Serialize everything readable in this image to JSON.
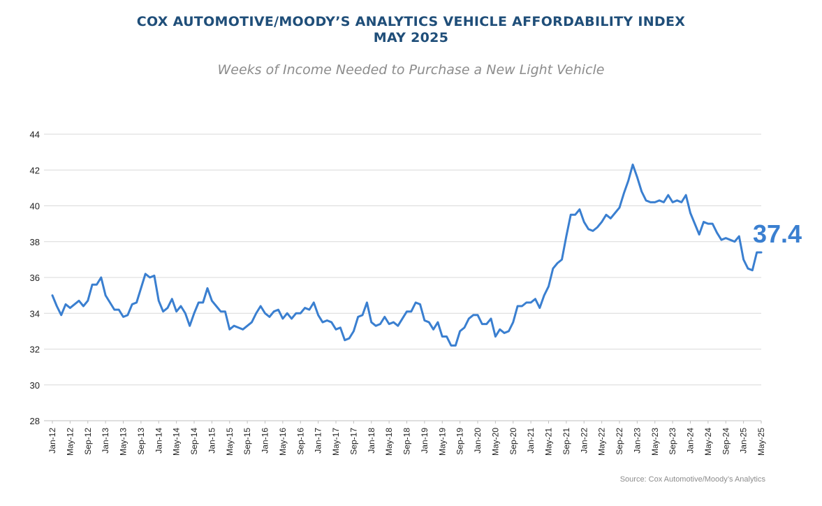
{
  "chart_data": {
    "type": "line",
    "title": "COX AUTOMOTIVE/MOODY’S ANALYTICS VEHICLE AFFORDABILITY INDEX",
    "title_line2": "MAY 2025",
    "subtitle": "Weeks of Income Needed to Purchase a New Light Vehicle",
    "source": "Source: Cox Automotive/Moody’s Analytics",
    "callout": "37.4",
    "xlabel": "",
    "ylabel": "",
    "ylim": [
      28,
      44
    ],
    "yticks": [
      28,
      30,
      32,
      34,
      36,
      38,
      40,
      42,
      44
    ],
    "grid": true,
    "line_color": "#3a7fd0",
    "grid_color": "#d9d9d9",
    "x_tick_labels": [
      "Jan-12",
      "May-12",
      "Sep-12",
      "Jan-13",
      "May-13",
      "Sep-13",
      "Jan-14",
      "May-14",
      "Sep-14",
      "Jan-15",
      "May-15",
      "Sep-15",
      "Jan-16",
      "May-16",
      "Sep-16",
      "Jan-17",
      "May-17",
      "Sep-17",
      "Jan-18",
      "May-18",
      "Sep-18",
      "Jan-19",
      "May-19",
      "Sep-19",
      "Jan-20",
      "May-20",
      "Sep-20",
      "Jan-21",
      "May-21",
      "Sep-21",
      "Jan-22",
      "May-22",
      "Sep-22",
      "Jan-23",
      "May-23",
      "Sep-23",
      "Jan-24",
      "May-24",
      "Sep-24",
      "Jan-25",
      "May-25"
    ],
    "series": [
      {
        "name": "Weeks of Income",
        "start": "Jan-12",
        "values": [
          35.0,
          34.4,
          33.9,
          34.5,
          34.3,
          34.5,
          34.7,
          34.4,
          34.7,
          35.6,
          35.6,
          36.0,
          35.0,
          34.6,
          34.2,
          34.2,
          33.8,
          33.9,
          34.5,
          34.6,
          35.4,
          36.2,
          36.0,
          36.1,
          34.7,
          34.1,
          34.3,
          34.8,
          34.1,
          34.4,
          34.0,
          33.3,
          34.0,
          34.6,
          34.6,
          35.4,
          34.7,
          34.4,
          34.1,
          34.1,
          33.1,
          33.3,
          33.2,
          33.1,
          33.3,
          33.5,
          34.0,
          34.4,
          34.0,
          33.8,
          34.1,
          34.2,
          33.7,
          34.0,
          33.7,
          34.0,
          34.0,
          34.3,
          34.2,
          34.6,
          33.9,
          33.5,
          33.6,
          33.5,
          33.1,
          33.2,
          32.5,
          32.6,
          33.0,
          33.8,
          33.9,
          34.6,
          33.5,
          33.3,
          33.4,
          33.8,
          33.4,
          33.5,
          33.3,
          33.7,
          34.1,
          34.1,
          34.6,
          34.5,
          33.6,
          33.5,
          33.1,
          33.5,
          32.7,
          32.7,
          32.2,
          32.2,
          33.0,
          33.2,
          33.7,
          33.9,
          33.9,
          33.4,
          33.4,
          33.7,
          32.7,
          33.1,
          32.9,
          33.0,
          33.5,
          34.4,
          34.4,
          34.6,
          34.6,
          34.8,
          34.3,
          35.0,
          35.5,
          36.5,
          36.8,
          37.0,
          38.3,
          39.5,
          39.5,
          39.8,
          39.1,
          38.7,
          38.6,
          38.8,
          39.1,
          39.5,
          39.3,
          39.6,
          39.9,
          40.7,
          41.4,
          42.3,
          41.6,
          40.8,
          40.3,
          40.2,
          40.2,
          40.3,
          40.2,
          40.6,
          40.2,
          40.3,
          40.2,
          40.6,
          39.6,
          39.0,
          38.4,
          39.1,
          39.0,
          39.0,
          38.5,
          38.1,
          38.2,
          38.1,
          38.0,
          38.3,
          37.0,
          36.5,
          36.4,
          37.4,
          37.4
        ]
      }
    ]
  }
}
